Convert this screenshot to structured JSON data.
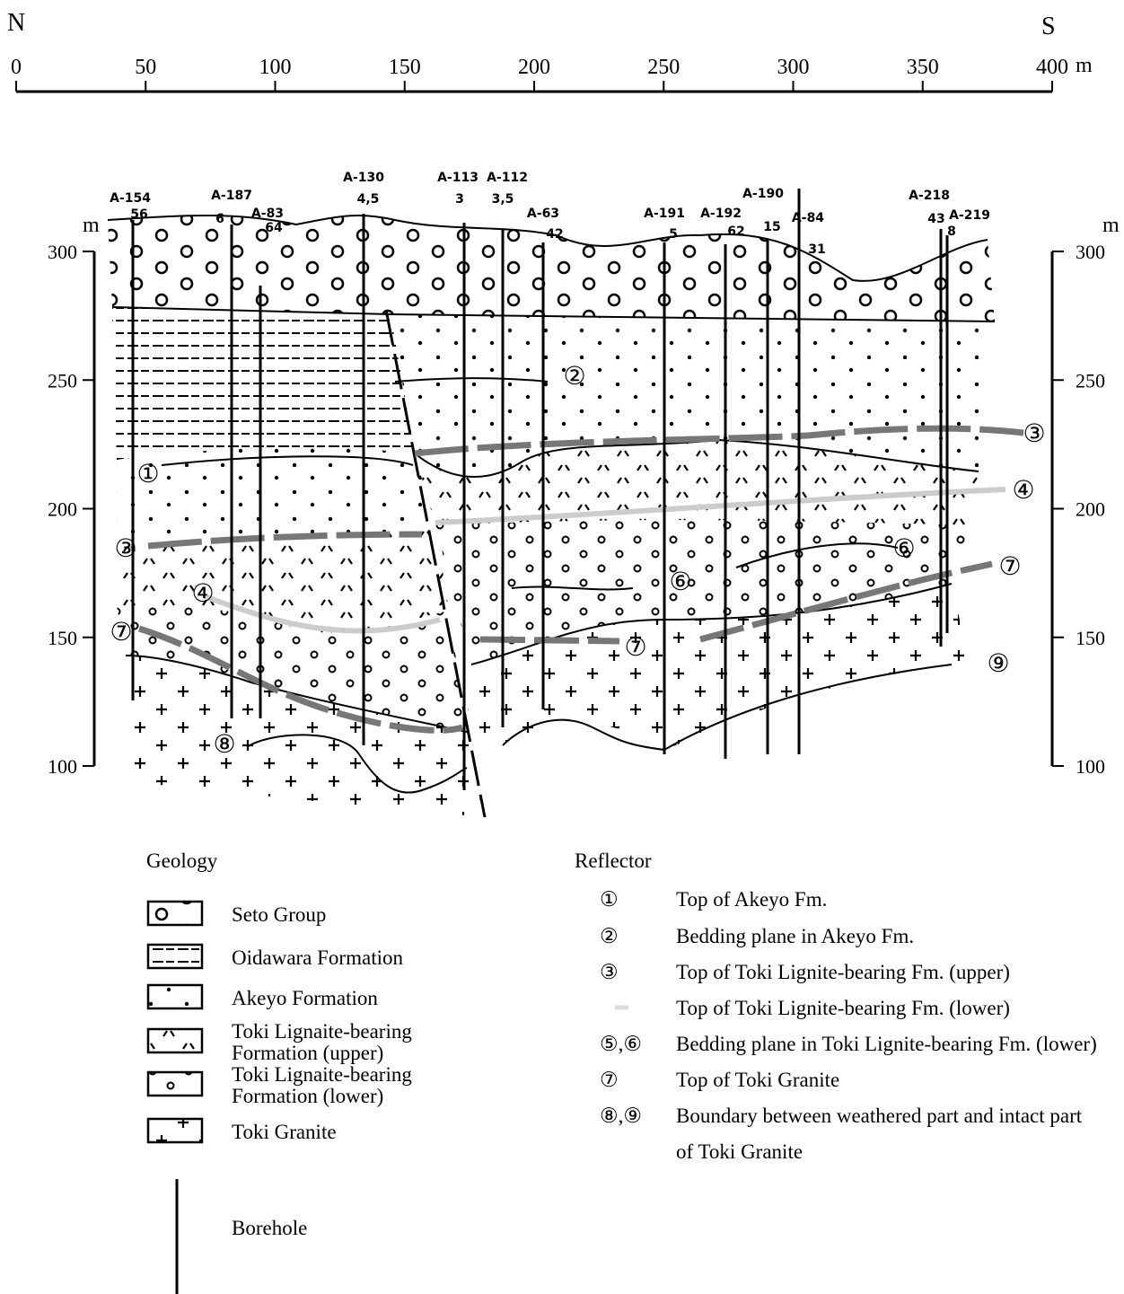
{
  "scale": {
    "north": "N",
    "south": "S",
    "unit": "m",
    "ticks": [
      0,
      50,
      100,
      150,
      200,
      250,
      300,
      350,
      400
    ]
  },
  "section": {
    "unit_left": "m",
    "unit_right": "m",
    "depth_ticks": [
      300,
      250,
      200,
      150,
      100
    ],
    "boreholes": [
      {
        "name": "A-154",
        "depth": "56"
      },
      {
        "name": "A-187",
        "depth": "6"
      },
      {
        "name": "A-83",
        "depth": "64"
      },
      {
        "name": "A-130",
        "depth": "4,5"
      },
      {
        "name": "A-113",
        "depth": "3"
      },
      {
        "name": "A-112",
        "depth": "3,5"
      },
      {
        "name": "A-63",
        "depth": "42"
      },
      {
        "name": "A-191",
        "depth": "5"
      },
      {
        "name": "A-192",
        "depth": "62"
      },
      {
        "name": "A-190",
        "depth": "15"
      },
      {
        "name": "A-84",
        "depth": "31"
      },
      {
        "name": "A-218",
        "depth": "43"
      },
      {
        "name": "A-219",
        "depth": "8"
      }
    ],
    "markers": [
      "①",
      "②",
      "③",
      "④",
      "③",
      "④",
      "⑥",
      "⑥",
      "⑦",
      "⑦",
      "⑦",
      "⑧",
      "⑨"
    ]
  },
  "legend": {
    "geology_title": "Geology",
    "geology": [
      {
        "lines": [
          "Seto Group"
        ]
      },
      {
        "lines": [
          "Oidawara Formation"
        ]
      },
      {
        "lines": [
          "Akeyo Formation"
        ]
      },
      {
        "lines": [
          "Toki Lignaite-bearing",
          "Formation (upper)"
        ]
      },
      {
        "lines": [
          "Toki Lignaite-bearing",
          "Formation (lower)"
        ]
      },
      {
        "lines": [
          "Toki Granite"
        ]
      }
    ],
    "reflector_title": "Reflector",
    "reflectors": [
      {
        "symbol": "①",
        "lines": [
          "Top of Akeyo Fm."
        ]
      },
      {
        "symbol": "②",
        "lines": [
          "Bedding plane in Akeyo Fm."
        ]
      },
      {
        "symbol": "③",
        "lines": [
          "Top of Toki Lignite-bearing Fm. (upper)"
        ]
      },
      {
        "lines": [
          "Top of Toki Lignite-bearing Fm. (lower)"
        ]
      },
      {
        "symbol": "⑤,⑥",
        "lines": [
          "Bedding plane in Toki Lignite-bearing Fm. (lower)"
        ]
      },
      {
        "symbol": "⑦",
        "lines": [
          "Top of Toki Granite"
        ]
      },
      {
        "symbol": "⑧,⑨",
        "lines": [
          "Boundary between weathered part and intact part",
          "of Toki Granite"
        ]
      }
    ],
    "borehole": "Borehole"
  }
}
